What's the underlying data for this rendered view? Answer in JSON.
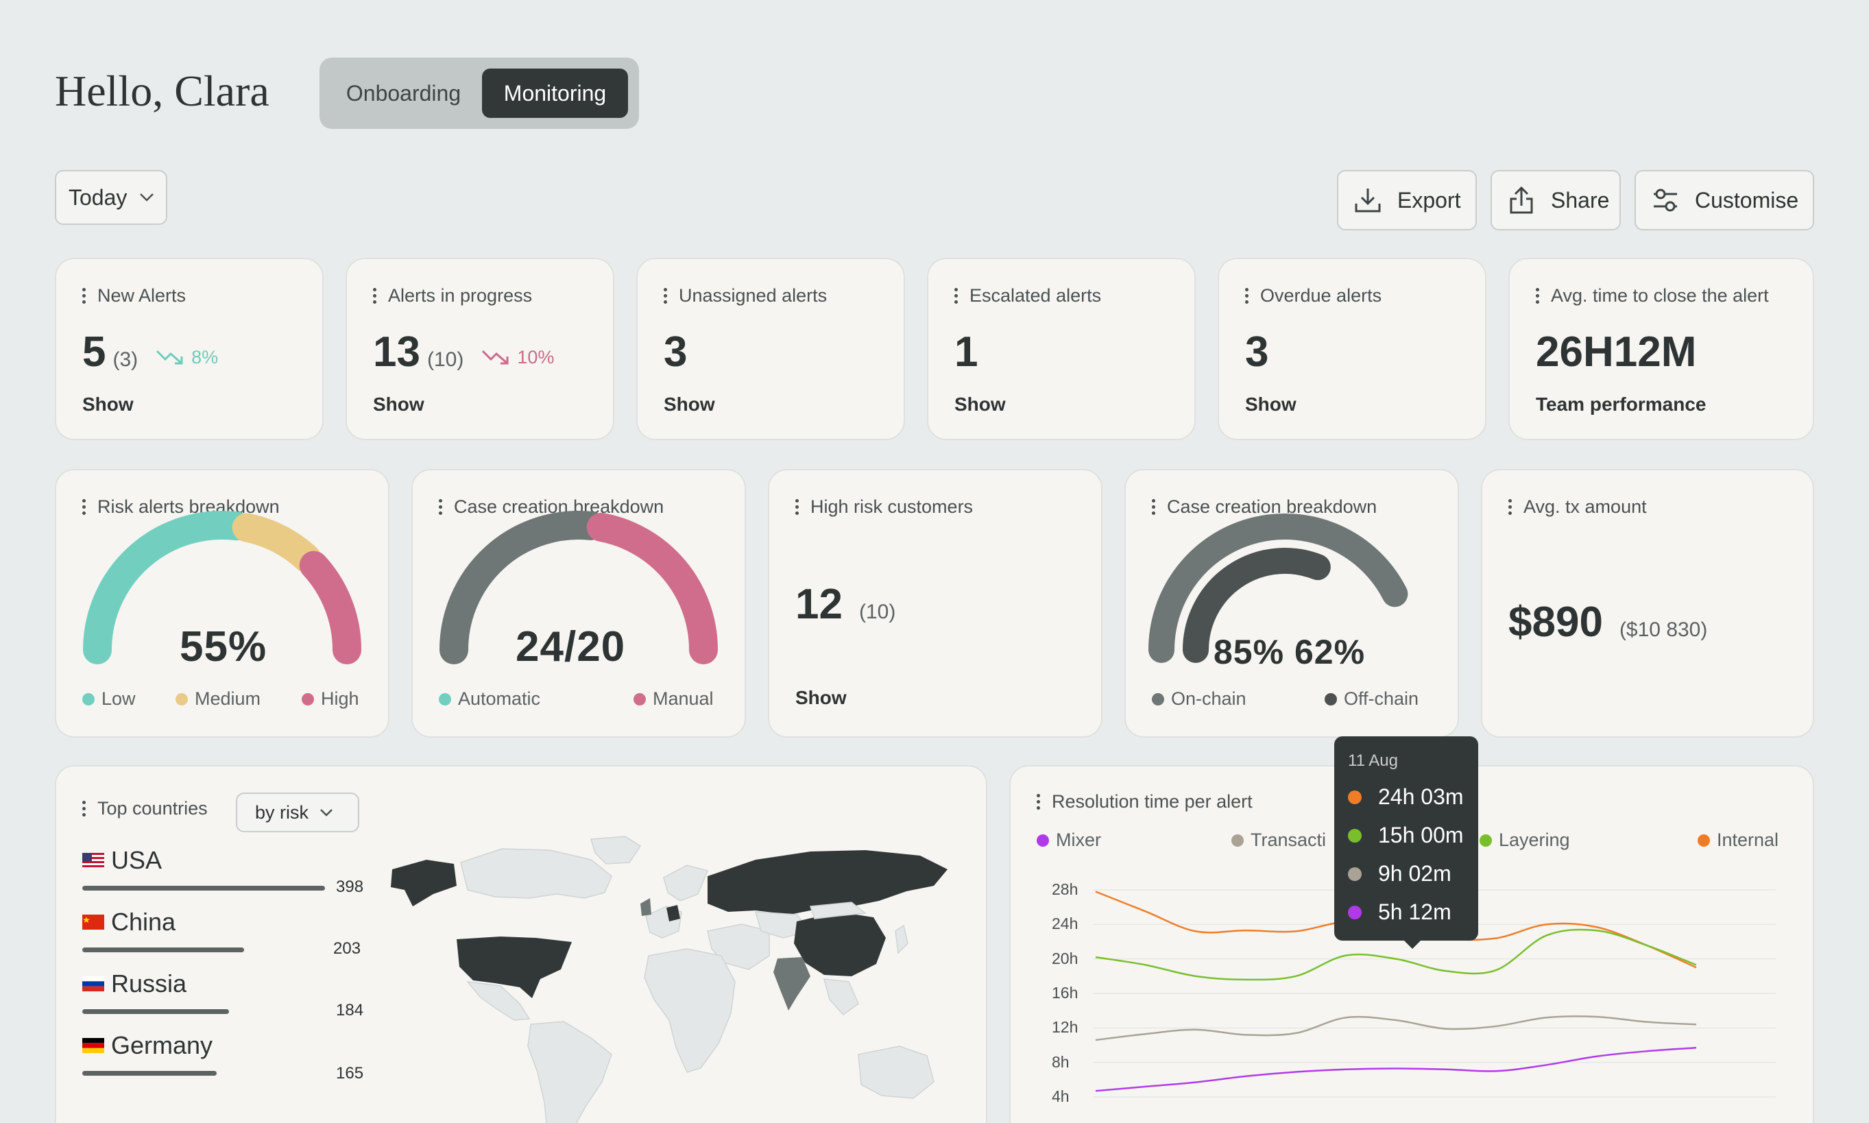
{
  "header": {
    "greeting": "Hello, Clara",
    "tabs": [
      {
        "label": "Onboarding",
        "active": false
      },
      {
        "label": "Monitoring",
        "active": true
      }
    ]
  },
  "toolbar": {
    "period": "Today",
    "export_label": "Export",
    "share_label": "Share",
    "customise_label": "Customise"
  },
  "kpis": [
    {
      "title": "New Alerts",
      "value": "5",
      "prev": "(3)",
      "trend": "8%",
      "trend_color": "#6fcbbb",
      "link": "Show"
    },
    {
      "title": "Alerts in progress",
      "value": "13",
      "prev": "(10)",
      "trend": "10%",
      "trend_color": "#cc6a89",
      "link": "Show"
    },
    {
      "title": "Unassigned alerts",
      "value": "3",
      "link": "Show"
    },
    {
      "title": "Escalated alerts",
      "value": "1",
      "link": "Show"
    },
    {
      "title": "Overdue alerts",
      "value": "3",
      "link": "Show"
    },
    {
      "title": "Avg. time to close the alert",
      "value": "26H12M",
      "link": "Team performance"
    }
  ],
  "widgets": {
    "risk": {
      "title": "Risk alerts breakdown",
      "value": "55%",
      "legend": [
        {
          "label": "Low",
          "color": "#72cfc0",
          "share": 0.55
        },
        {
          "label": "Medium",
          "color": "#e9cb85",
          "share": 0.2
        },
        {
          "label": "High",
          "color": "#d06d8c",
          "share": 0.25
        }
      ]
    },
    "case": {
      "title": "Case creation breakdown",
      "value": "24/20",
      "legend": [
        {
          "label": "Automatic",
          "color": "#72cfc0",
          "gauge_color": "#6f7776",
          "share": 0.545
        },
        {
          "label": "Manual",
          "color": "#d06d8c",
          "share": 0.455
        }
      ]
    },
    "high_risk": {
      "title": "High risk customers",
      "value": "12",
      "prev": "(10)",
      "link": "Show"
    },
    "case2": {
      "title": "Case creation breakdown",
      "value": "85% 62%",
      "legend": [
        {
          "label": "On-chain",
          "color": "#6f7776",
          "share": 0.85
        },
        {
          "label": "Off-chain",
          "color": "#4b5251",
          "share": 0.62
        }
      ]
    },
    "avg_tx": {
      "title": "Avg. tx amount",
      "value": "$890",
      "prev": "($10 830)"
    }
  },
  "countries": {
    "title": "Top countries",
    "filter": "by risk",
    "items": [
      {
        "name": "USA",
        "value": "398",
        "flag": "us"
      },
      {
        "name": "China",
        "value": "203",
        "flag": "cn"
      },
      {
        "name": "Russia",
        "value": "184",
        "flag": "ru"
      },
      {
        "name": "Germany",
        "value": "165",
        "flag": "de"
      }
    ]
  },
  "resolution": {
    "title": "Resolution time per alert",
    "legend": [
      {
        "label": "Mixer",
        "color": "#b13ae8"
      },
      {
        "label": "Transacti",
        "color": "#aaa395"
      },
      {
        "label": "Layering",
        "color": "#79bf2c"
      },
      {
        "label": "Internal",
        "color": "#f07d25"
      }
    ],
    "tooltip": {
      "date": "11 Aug",
      "rows": [
        {
          "value": "24h 03m",
          "color": "#f07d25"
        },
        {
          "value": "15h 00m",
          "color": "#79bf2c"
        },
        {
          "value": "9h 02m",
          "color": "#aaa395"
        },
        {
          "value": "5h 12m",
          "color": "#b13ae8"
        }
      ]
    }
  },
  "chart_data": {
    "type": "line",
    "title": "Resolution time per alert",
    "ylabels": [
      "28h",
      "24h",
      "20h",
      "16h",
      "12h",
      "8h",
      "4h"
    ],
    "ylim": [
      4,
      28
    ],
    "x": [
      0,
      1,
      2,
      3,
      4,
      5,
      6,
      7,
      8,
      9,
      10,
      11,
      12
    ],
    "series": [
      {
        "name": "Internal",
        "color": "#f07d25",
        "values": [
          27.8,
          25.5,
          23.2,
          23.3,
          23.2,
          24.3,
          23.8,
          22.4,
          22.4,
          24.0,
          23.7,
          21.6,
          19.0
        ]
      },
      {
        "name": "Layering",
        "color": "#79bf2c",
        "values": [
          20.2,
          19.3,
          18.0,
          17.6,
          18.0,
          20.4,
          20.0,
          18.6,
          18.7,
          22.7,
          23.3,
          21.6,
          19.3
        ]
      },
      {
        "name": "Transacti",
        "color": "#aaa395",
        "values": [
          10.6,
          11.3,
          11.8,
          11.2,
          11.4,
          13.2,
          12.9,
          11.9,
          12.2,
          13.2,
          13.3,
          12.7,
          12.4
        ]
      },
      {
        "name": "Mixer",
        "color": "#b13ae8",
        "values": [
          4.7,
          5.2,
          5.7,
          6.4,
          6.9,
          7.2,
          7.3,
          7.2,
          7.0,
          7.7,
          8.7,
          9.3,
          9.7
        ]
      }
    ]
  }
}
